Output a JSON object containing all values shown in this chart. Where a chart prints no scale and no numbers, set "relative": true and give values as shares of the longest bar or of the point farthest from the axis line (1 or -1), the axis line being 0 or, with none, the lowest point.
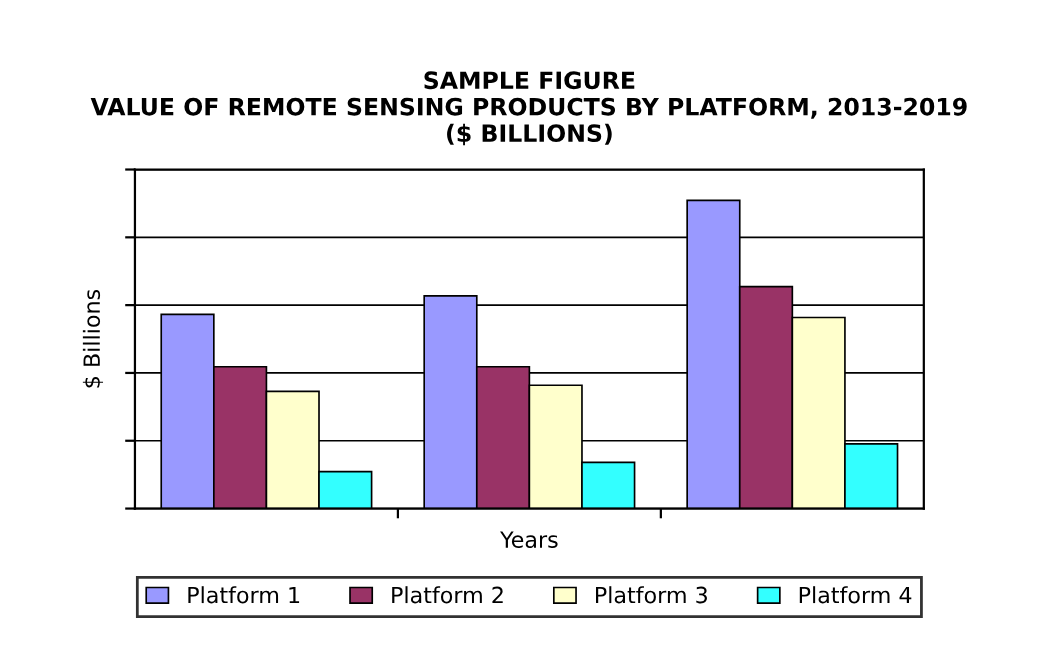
{
  "chart_data": {
    "type": "bar",
    "title": "SAMPLE FIGURE\nVALUE OF REMOTE SENSING PRODUCTS BY PLATFORM, 2013-2019\n($ BILLIONS)",
    "xlabel": "Years",
    "ylabel": "$ Billions",
    "categories": [
      null,
      null,
      null
    ],
    "relative": true,
    "grid": "y",
    "legend": "bottom",
    "series": [
      {
        "name": "Platform 1",
        "color": "#9999ff",
        "values": [
          0.63,
          0.69,
          1.0
        ]
      },
      {
        "name": "Platform 2",
        "color": "#993366",
        "values": [
          0.46,
          0.46,
          0.72
        ]
      },
      {
        "name": "Platform 3",
        "color": "#ffffcc",
        "values": [
          0.38,
          0.4,
          0.62
        ]
      },
      {
        "name": "Platform 4",
        "color": "#33ffff",
        "values": [
          0.12,
          0.15,
          0.21
        ]
      }
    ]
  }
}
